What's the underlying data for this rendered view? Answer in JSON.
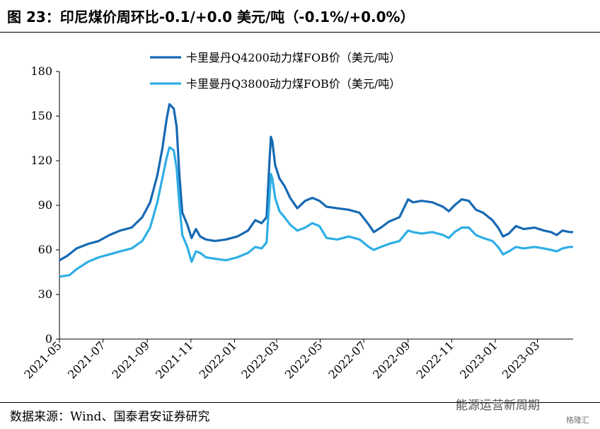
{
  "header": {
    "title": "图 23：印尼煤价周环比-0.1/+0.0 美元/吨（-0.1%/+0.0%）"
  },
  "footer": {
    "source": "数据来源：Wind、国泰君安证券研究",
    "watermark": "能源运营新周期",
    "watermark_small": "格隆汇"
  },
  "chart_data": {
    "type": "line",
    "title": "",
    "xlabel": "",
    "ylabel": "",
    "ylim": [
      0,
      180
    ],
    "yticks": [
      0,
      30,
      60,
      90,
      120,
      150,
      180
    ],
    "xlim": [
      "2021-05-01",
      "2023-04-20"
    ],
    "xticks": [
      "2021-05",
      "2021-07",
      "2021-09",
      "2021-11",
      "2022-01",
      "2022-03",
      "2022-05",
      "2022-07",
      "2022-09",
      "2022-11",
      "2023-01",
      "2023-03"
    ],
    "grid": false,
    "legend_position": "top-center",
    "series": [
      {
        "name": "卡里曼丹Q4200动力煤FOB价（美元/吨）",
        "color": "#1769b3",
        "points": [
          [
            "2021-05-01",
            53
          ],
          [
            "2021-05-12",
            56
          ],
          [
            "2021-05-25",
            61
          ],
          [
            "2021-06-10",
            64
          ],
          [
            "2021-06-25",
            66
          ],
          [
            "2021-07-10",
            70
          ],
          [
            "2021-07-25",
            73
          ],
          [
            "2021-08-10",
            75
          ],
          [
            "2021-08-25",
            82
          ],
          [
            "2021-09-05",
            92
          ],
          [
            "2021-09-15",
            110
          ],
          [
            "2021-09-22",
            128
          ],
          [
            "2021-09-28",
            148
          ],
          [
            "2021-10-02",
            158
          ],
          [
            "2021-10-08",
            155
          ],
          [
            "2021-10-12",
            143
          ],
          [
            "2021-10-16",
            110
          ],
          [
            "2021-10-20",
            85
          ],
          [
            "2021-10-27",
            77
          ],
          [
            "2021-11-02",
            68
          ],
          [
            "2021-11-08",
            74
          ],
          [
            "2021-11-14",
            69
          ],
          [
            "2021-11-22",
            67
          ],
          [
            "2021-12-05",
            66
          ],
          [
            "2021-12-20",
            67
          ],
          [
            "2022-01-05",
            69
          ],
          [
            "2022-01-20",
            73
          ],
          [
            "2022-01-30",
            80
          ],
          [
            "2022-02-08",
            78
          ],
          [
            "2022-02-15",
            82
          ],
          [
            "2022-02-19",
            120
          ],
          [
            "2022-02-21",
            136
          ],
          [
            "2022-02-23",
            133
          ],
          [
            "2022-02-27",
            117
          ],
          [
            "2022-03-05",
            108
          ],
          [
            "2022-03-12",
            103
          ],
          [
            "2022-03-20",
            95
          ],
          [
            "2022-03-30",
            88
          ],
          [
            "2022-04-10",
            93
          ],
          [
            "2022-04-20",
            95
          ],
          [
            "2022-04-30",
            93
          ],
          [
            "2022-05-10",
            89
          ],
          [
            "2022-05-25",
            88
          ],
          [
            "2022-06-10",
            87
          ],
          [
            "2022-06-25",
            85
          ],
          [
            "2022-07-08",
            77
          ],
          [
            "2022-07-15",
            72
          ],
          [
            "2022-07-25",
            75
          ],
          [
            "2022-08-05",
            79
          ],
          [
            "2022-08-20",
            82
          ],
          [
            "2022-09-01",
            94
          ],
          [
            "2022-09-08",
            92
          ],
          [
            "2022-09-20",
            93
          ],
          [
            "2022-10-05",
            92
          ],
          [
            "2022-10-20",
            89
          ],
          [
            "2022-10-28",
            86
          ],
          [
            "2022-11-05",
            90
          ],
          [
            "2022-11-15",
            94
          ],
          [
            "2022-11-25",
            93
          ],
          [
            "2022-12-05",
            87
          ],
          [
            "2022-12-15",
            85
          ],
          [
            "2022-12-28",
            80
          ],
          [
            "2023-01-05",
            75
          ],
          [
            "2023-01-12",
            69
          ],
          [
            "2023-01-20",
            71
          ],
          [
            "2023-01-30",
            76
          ],
          [
            "2023-02-10",
            74
          ],
          [
            "2023-02-25",
            75
          ],
          [
            "2023-03-10",
            73
          ],
          [
            "2023-03-20",
            72
          ],
          [
            "2023-03-28",
            70
          ],
          [
            "2023-04-05",
            73
          ],
          [
            "2023-04-15",
            72
          ],
          [
            "2023-04-20",
            72
          ]
        ]
      },
      {
        "name": "卡里曼丹Q3800动力煤FOB价（美元/吨）",
        "color": "#2eaee5",
        "points": [
          [
            "2021-05-01",
            42
          ],
          [
            "2021-05-15",
            43
          ],
          [
            "2021-05-25",
            47
          ],
          [
            "2021-06-10",
            52
          ],
          [
            "2021-06-25",
            55
          ],
          [
            "2021-07-10",
            57
          ],
          [
            "2021-07-25",
            59
          ],
          [
            "2021-08-10",
            61
          ],
          [
            "2021-08-25",
            66
          ],
          [
            "2021-09-05",
            75
          ],
          [
            "2021-09-15",
            92
          ],
          [
            "2021-09-22",
            108
          ],
          [
            "2021-09-28",
            122
          ],
          [
            "2021-10-02",
            129
          ],
          [
            "2021-10-08",
            127
          ],
          [
            "2021-10-12",
            115
          ],
          [
            "2021-10-16",
            90
          ],
          [
            "2021-10-20",
            70
          ],
          [
            "2021-10-27",
            62
          ],
          [
            "2021-11-02",
            52
          ],
          [
            "2021-11-08",
            59
          ],
          [
            "2021-11-14",
            58
          ],
          [
            "2021-11-22",
            55
          ],
          [
            "2021-12-05",
            54
          ],
          [
            "2021-12-20",
            53
          ],
          [
            "2022-01-05",
            55
          ],
          [
            "2022-01-20",
            58
          ],
          [
            "2022-01-30",
            62
          ],
          [
            "2022-02-08",
            61
          ],
          [
            "2022-02-15",
            65
          ],
          [
            "2022-02-19",
            95
          ],
          [
            "2022-02-21",
            111
          ],
          [
            "2022-02-23",
            108
          ],
          [
            "2022-02-27",
            95
          ],
          [
            "2022-03-05",
            86
          ],
          [
            "2022-03-12",
            82
          ],
          [
            "2022-03-20",
            77
          ],
          [
            "2022-03-30",
            73
          ],
          [
            "2022-04-10",
            75
          ],
          [
            "2022-04-20",
            78
          ],
          [
            "2022-04-30",
            76
          ],
          [
            "2022-05-10",
            68
          ],
          [
            "2022-05-25",
            67
          ],
          [
            "2022-06-10",
            69
          ],
          [
            "2022-06-25",
            67
          ],
          [
            "2022-07-08",
            62
          ],
          [
            "2022-07-15",
            60
          ],
          [
            "2022-07-25",
            62
          ],
          [
            "2022-08-05",
            64
          ],
          [
            "2022-08-20",
            66
          ],
          [
            "2022-09-01",
            73
          ],
          [
            "2022-09-08",
            72
          ],
          [
            "2022-09-20",
            71
          ],
          [
            "2022-10-05",
            72
          ],
          [
            "2022-10-20",
            70
          ],
          [
            "2022-10-28",
            68
          ],
          [
            "2022-11-05",
            72
          ],
          [
            "2022-11-15",
            75
          ],
          [
            "2022-11-25",
            75
          ],
          [
            "2022-12-05",
            70
          ],
          [
            "2022-12-15",
            68
          ],
          [
            "2022-12-28",
            66
          ],
          [
            "2023-01-05",
            62
          ],
          [
            "2023-01-12",
            57
          ],
          [
            "2023-01-20",
            59
          ],
          [
            "2023-01-30",
            62
          ],
          [
            "2023-02-10",
            61
          ],
          [
            "2023-02-25",
            62
          ],
          [
            "2023-03-10",
            61
          ],
          [
            "2023-03-20",
            60
          ],
          [
            "2023-03-28",
            59
          ],
          [
            "2023-04-05",
            61
          ],
          [
            "2023-04-15",
            62
          ],
          [
            "2023-04-20",
            62
          ]
        ]
      }
    ]
  }
}
